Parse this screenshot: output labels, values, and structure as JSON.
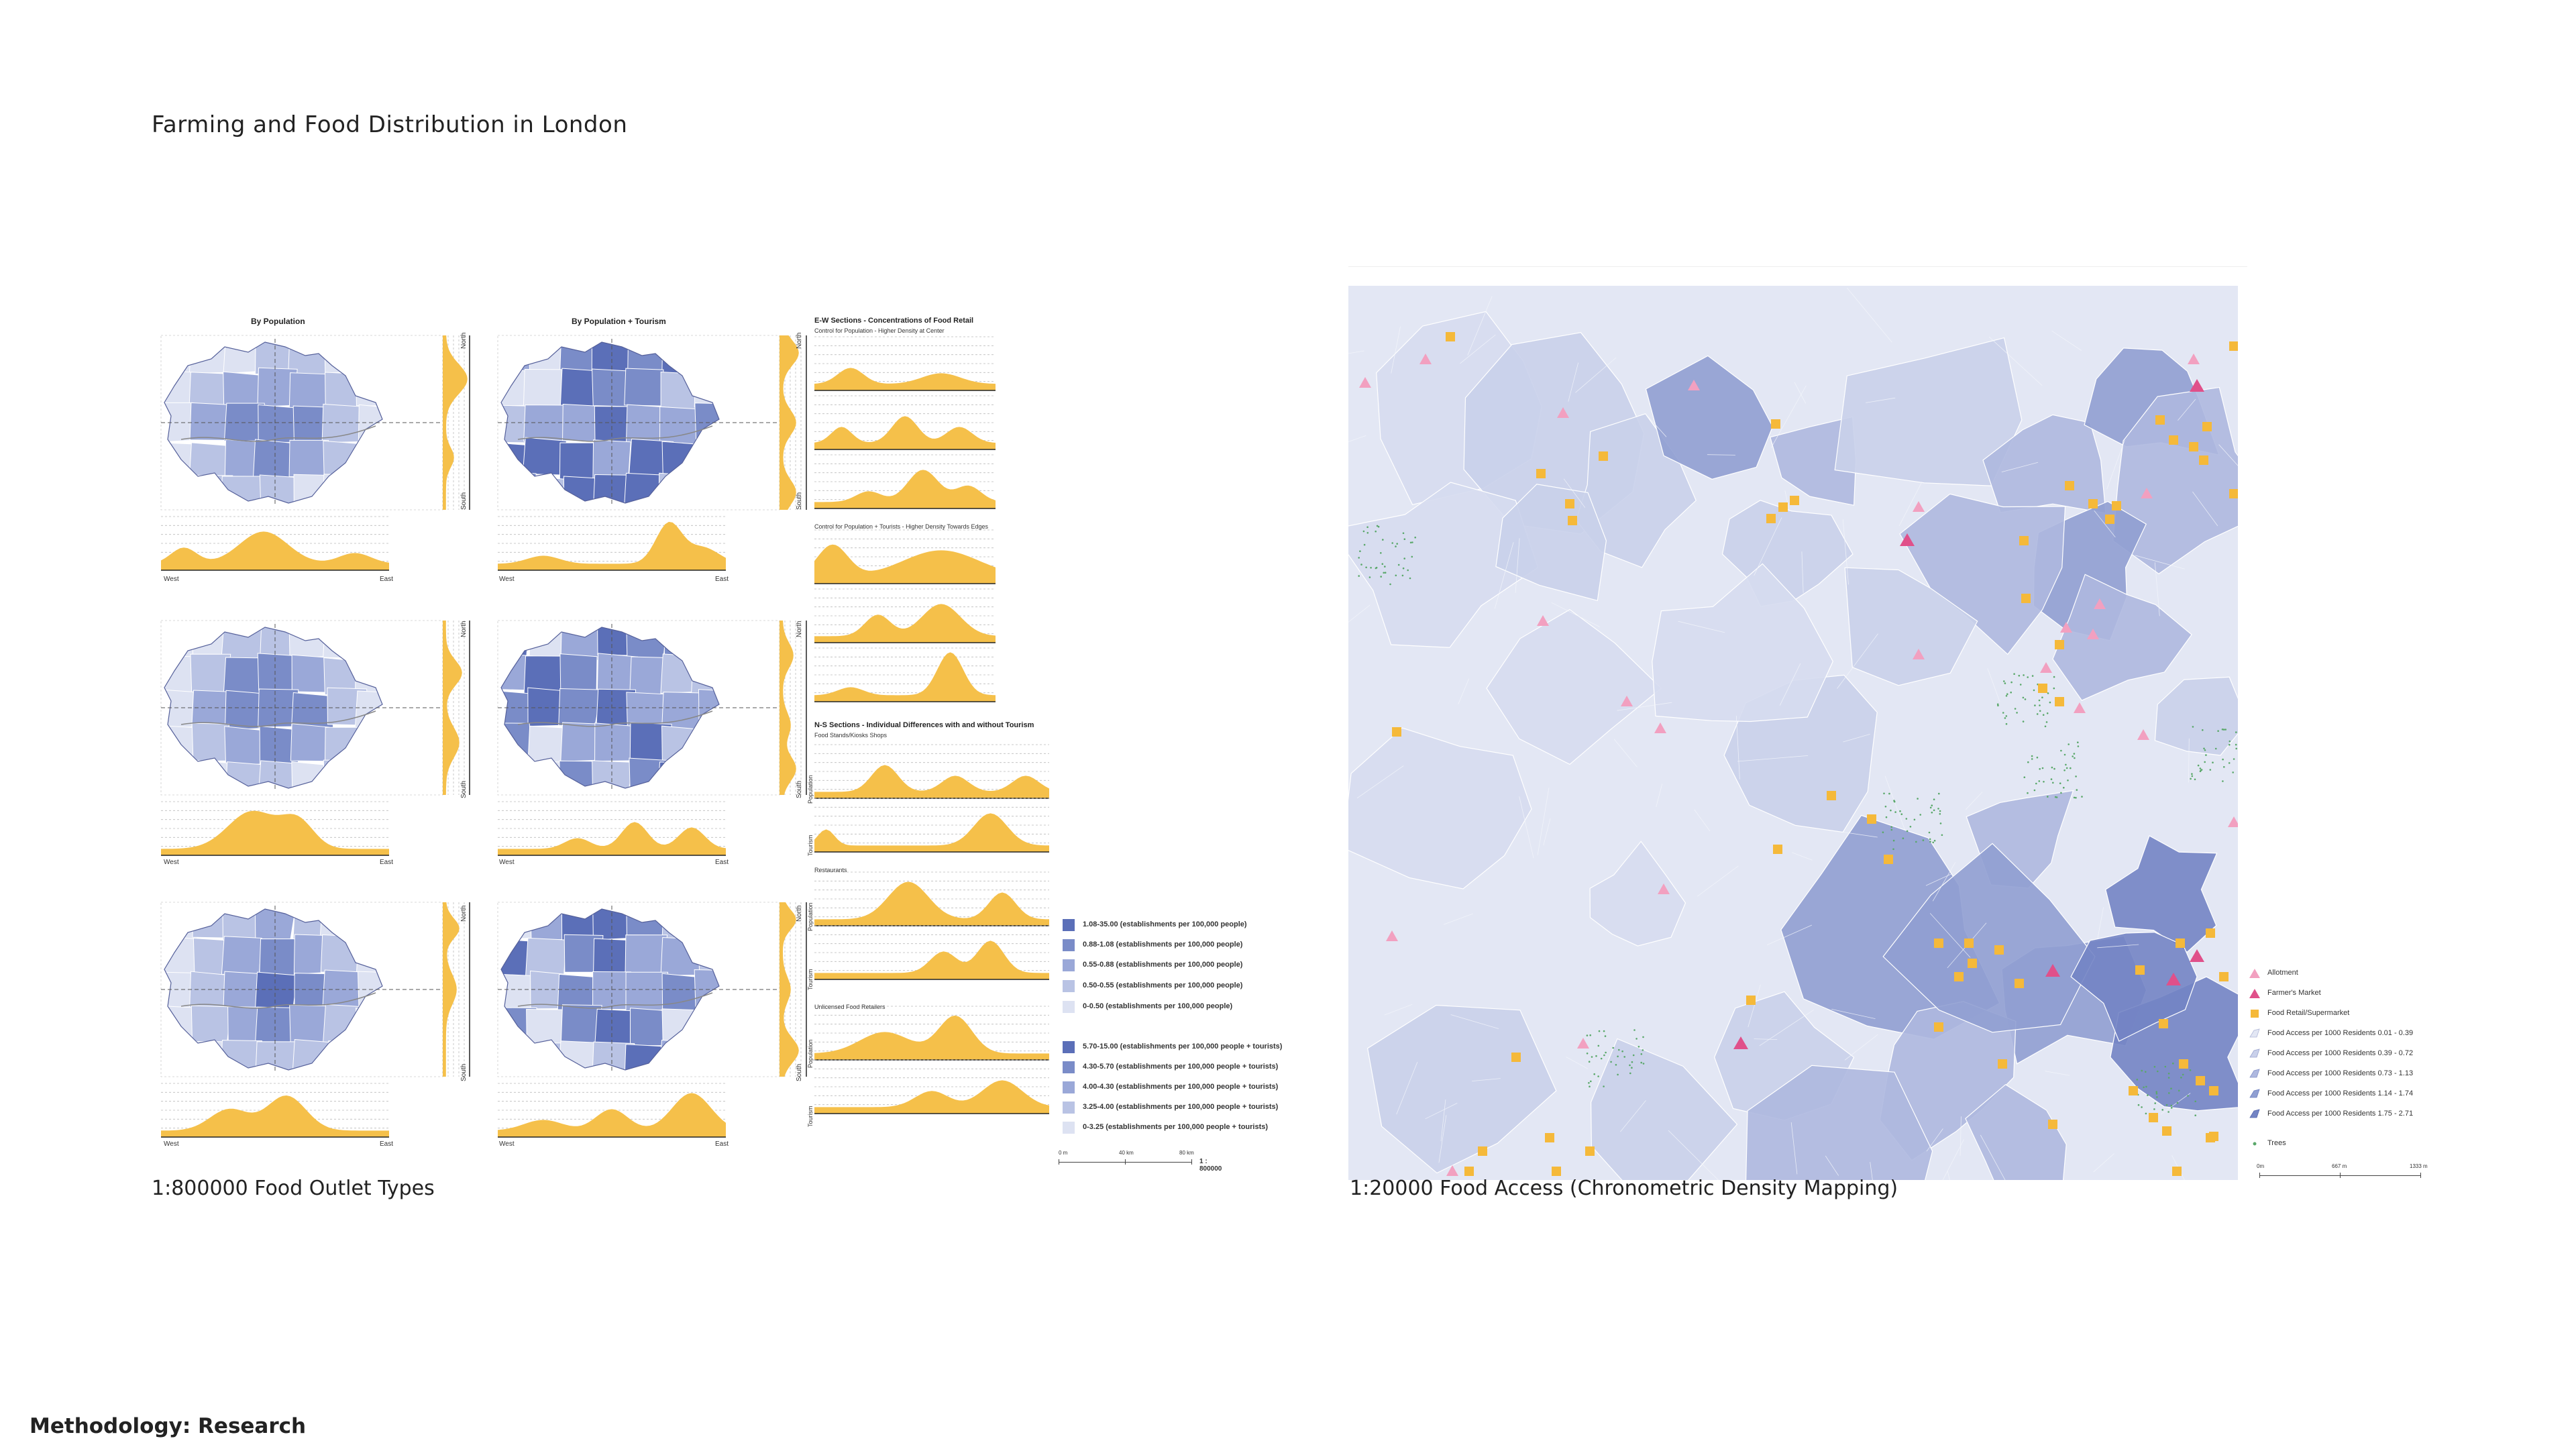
{
  "title": "Farming and Food Distribution in London",
  "footer": "Methodology: Research",
  "left_panel": {
    "caption": "1:800000 Food Outlet Types",
    "map_titles": [
      "By Population",
      "By Population + Tourism"
    ],
    "row_side_labels": [
      "",
      "",
      ""
    ],
    "axis": {
      "west": "West",
      "east": "East",
      "north": "North",
      "south": "South"
    },
    "sections_title": "E-W Sections - Concentrations of Food Retail",
    "sections_sub1": "Control for Population - Higher Density at Center",
    "sections_sub2": "Control for Population + Tourists - Higher Density Towards Edges",
    "ns_title": "N-S Sections - Individual Differences with and without Tourism",
    "ns_sub": "Food Stands/Kiosks Shops",
    "ns_groups": [
      "Restaurants",
      "Unlicensed Food Retailers"
    ],
    "ns_row_labels": [
      "Population",
      "Tourism"
    ],
    "legend_population": [
      {
        "label": "1.08-35.00 (establishments per 100,000 people)",
        "color": "#5b6fb8"
      },
      {
        "label": "0.88-1.08 (establishments per 100,000 people)",
        "color": "#7a8cc8"
      },
      {
        "label": "0.55-0.88 (establishments per 100,000 people)",
        "color": "#9aa8d8"
      },
      {
        "label": "0.50-0.55 (establishments per 100,000 people)",
        "color": "#b9c3e4"
      },
      {
        "label": "0-0.50 (establishments per 100,000 people)",
        "color": "#dde2f2"
      }
    ],
    "legend_tourism": [
      {
        "label": "5.70-15.00 (establishments per 100,000 people + tourists)",
        "color": "#5b6fb8"
      },
      {
        "label": "4.30-5.70 (establishments per 100,000 people + tourists)",
        "color": "#7a8cc8"
      },
      {
        "label": "4.00-4.30 (establishments per 100,000 people + tourists)",
        "color": "#9aa8d8"
      },
      {
        "label": "3.25-4.00 (establishments per 100,000 people + tourists)",
        "color": "#b9c3e4"
      },
      {
        "label": "0-3.25 (establishments per 100,000 people + tourists)",
        "color": "#dde2f2"
      }
    ],
    "scale": {
      "ticks": [
        "0 m",
        "40 km",
        "80 km"
      ],
      "ratio": "1 : 800000"
    }
  },
  "right_panel": {
    "caption": "1:20000 Food Access (Chronometric Density Mapping)",
    "legend": [
      {
        "label": "Allotment",
        "icon": "triangle-light",
        "color": "#f2a0c0"
      },
      {
        "label": "Farmer's Market",
        "icon": "triangle-dark",
        "color": "#e0508a"
      },
      {
        "label": "Food Retail/Supermarket",
        "icon": "square",
        "color": "#f5b93a"
      },
      {
        "label": "Food Access per 1000 Residents 0.01 - 0.39",
        "icon": "shade",
        "color": "#e3e7f4"
      },
      {
        "label": "Food Access per 1000 Residents 0.39 - 0.72",
        "icon": "shade",
        "color": "#c9d0ea"
      },
      {
        "label": "Food Access per 1000 Residents 0.73 - 1.13",
        "icon": "shade",
        "color": "#aeb8df"
      },
      {
        "label": "Food Access per 1000 Residents 1.14 - 1.74",
        "icon": "shade",
        "color": "#909fd2"
      },
      {
        "label": "Food Access per 1000 Residents 1.75 - 2.71",
        "icon": "shade",
        "color": "#7384c4"
      },
      {
        "label": "Trees",
        "icon": "dot",
        "color": "#5aa86a"
      }
    ],
    "scale": {
      "ticks": [
        "0m",
        "667 m",
        "1333 m"
      ]
    }
  },
  "colors": {
    "section_fill": "#f5c04a",
    "map_dark": "#5b6fb8",
    "map_light": "#dde2f2",
    "base": "#e3e7f4"
  }
}
